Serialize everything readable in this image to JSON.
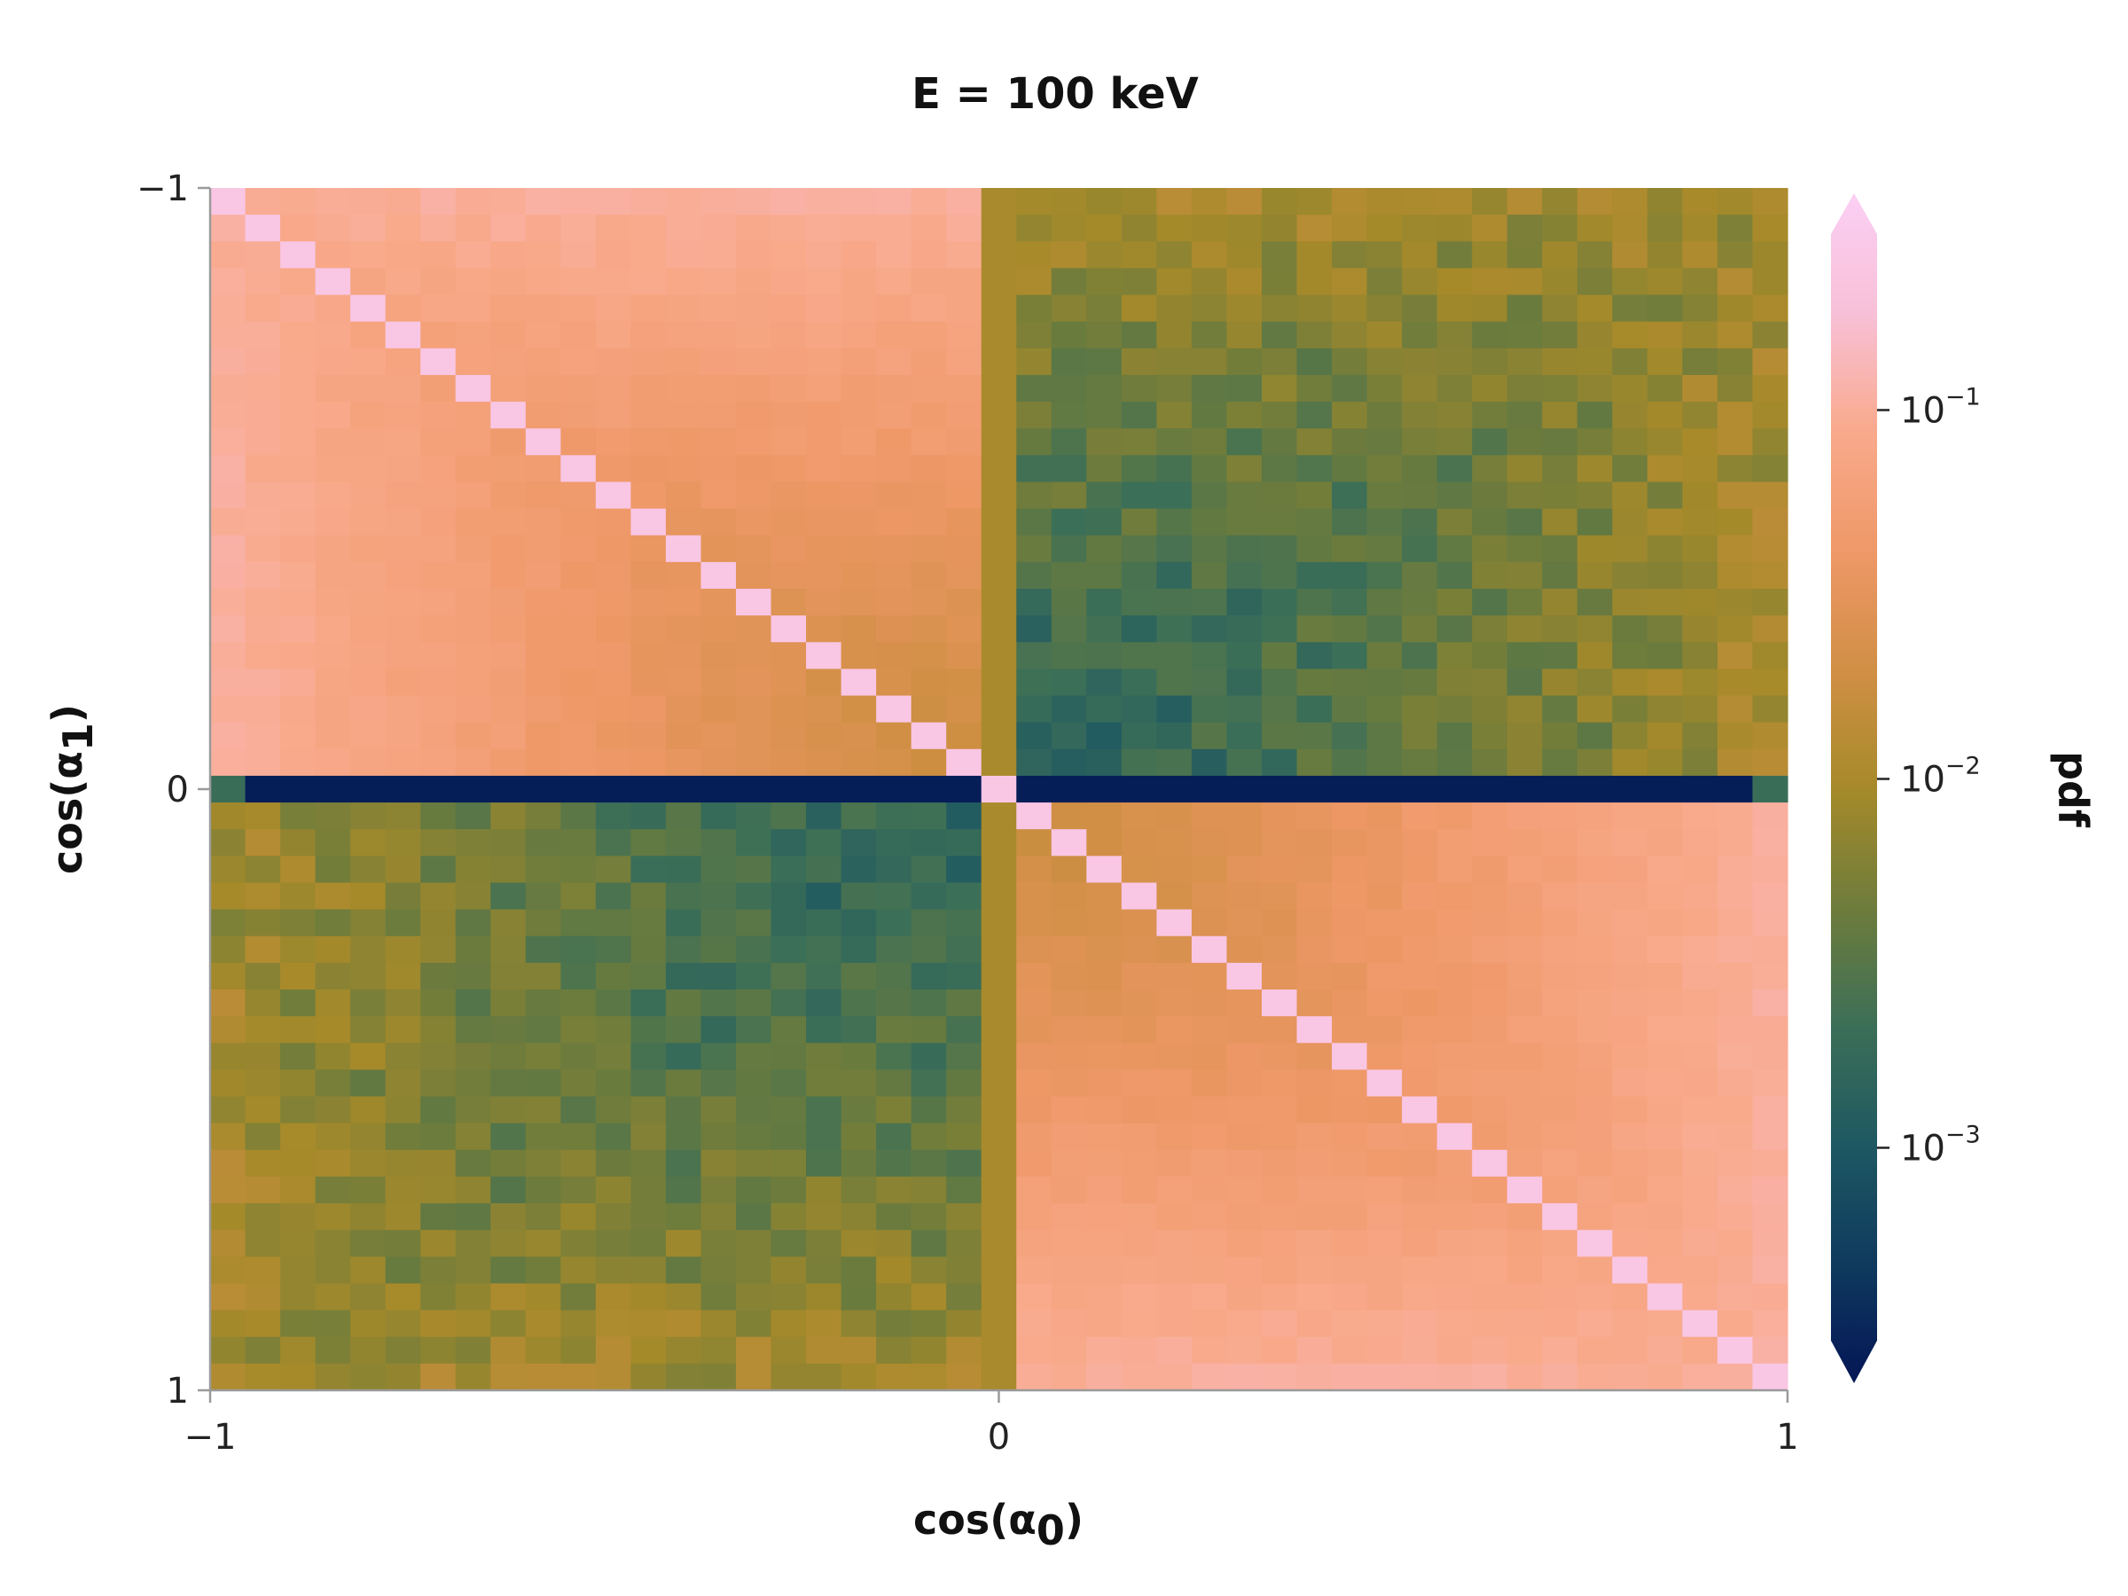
{
  "chart_data": {
    "type": "heatmap",
    "title": "E = 100 keV",
    "xlabel": "cos(α",
    "xlabel_sub": "0",
    "xlabel_close": ")",
    "ylabel": "cos(α",
    "ylabel_sub": "1",
    "ylabel_close": ")",
    "xlim": [
      -1,
      1
    ],
    "ylim": [
      -1,
      1
    ],
    "y_inverted": true,
    "x_ticks": [
      {
        "value": -1,
        "label": "−1"
      },
      {
        "value": 0,
        "label": "0"
      },
      {
        "value": 1,
        "label": "1"
      }
    ],
    "y_ticks": [
      {
        "value": -1,
        "label": "−1"
      },
      {
        "value": 0,
        "label": "0"
      },
      {
        "value": 1,
        "label": "1"
      }
    ],
    "grid_cells": [
      45,
      45
    ],
    "colorbar": {
      "label": "pdf",
      "scale": "log",
      "range": [
        0.0003,
        0.3
      ],
      "extend": "both",
      "ticks": [
        {
          "value": 0.1,
          "base": "10",
          "exp": "−1"
        },
        {
          "value": 0.01,
          "base": "10",
          "exp": "−2"
        },
        {
          "value": 0.001,
          "base": "10",
          "exp": "−3"
        }
      ],
      "colormap": [
        "#041656",
        "#0f3a5e",
        "#1e5862",
        "#3c6f57",
        "#6e7c3c",
        "#a68a2a",
        "#d18f45",
        "#ef9868",
        "#f9aa8c",
        "#f8c0d8",
        "#fbcff4"
      ]
    },
    "value_model": {
      "diagonal_pdf": 0.2,
      "same_sign_pdf_near_edge": 0.09,
      "same_sign_pdf_near_zero": 0.015,
      "opposite_sign_pdf_near_edge": 0.01,
      "opposite_sign_pdf_near_zero": 0.0015,
      "column_x0_pdf": 0.01,
      "row_y0_pdf": 0.00035
    }
  }
}
